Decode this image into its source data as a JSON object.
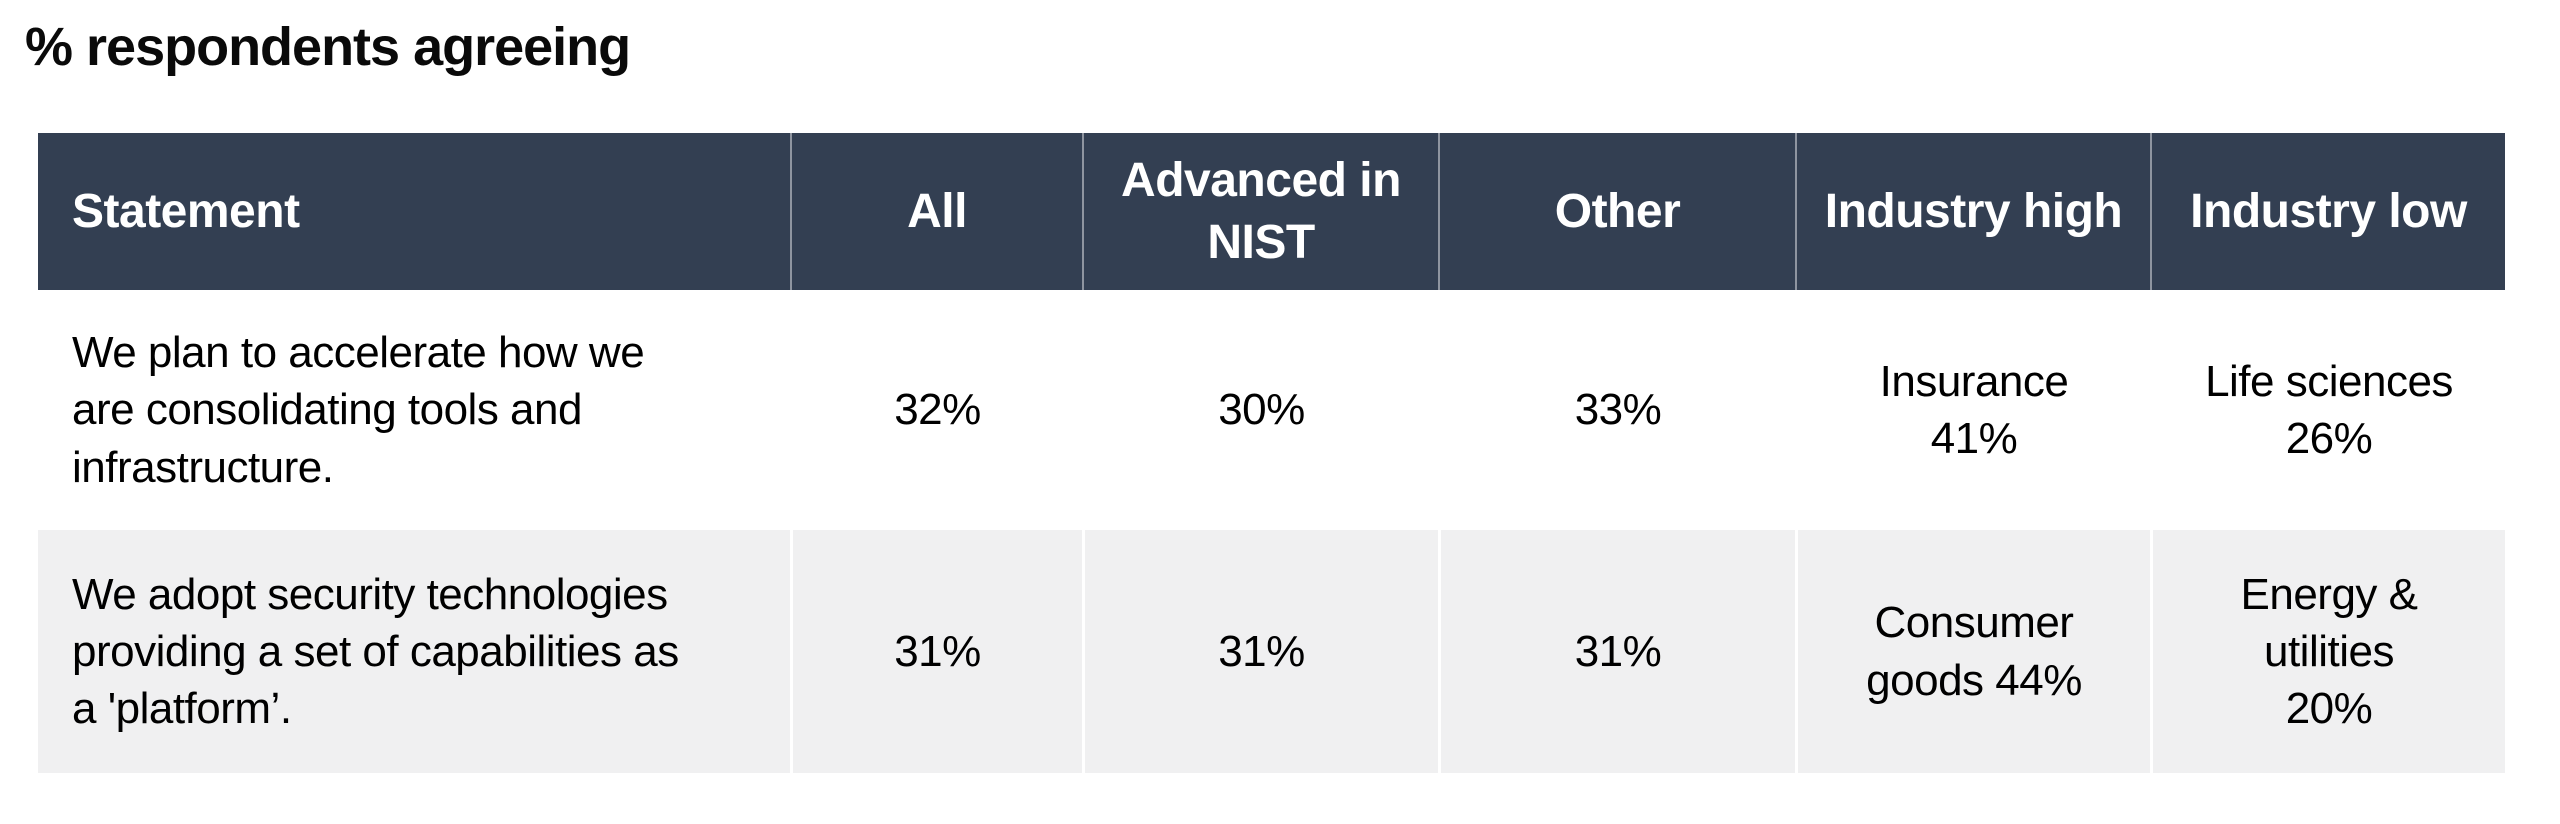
{
  "page_title": "% respondents agreeing",
  "colors": {
    "header_background": "#333f52",
    "header_text": "#ffffff",
    "row_background": "#ffffff",
    "row_alt_background": "#f0f0f1",
    "body_text": "#000000",
    "divider": "#ffffff"
  },
  "chart_data": {
    "type": "table",
    "title": "% respondents agreeing",
    "columns": [
      "Statement",
      "All",
      "Advanced in\nNIST",
      "Other",
      "Industry high",
      "Industry low"
    ],
    "rows": [
      [
        "We plan to accelerate how we\nare consolidating tools and\ninfrastructure.",
        "32%",
        "30%",
        "33%",
        "Insurance\n41%",
        "Life sciences\n26%"
      ],
      [
        "We adopt security technologies\nproviding a set of capabilities as\na 'platform’.",
        "31%",
        "31%",
        "31%",
        "Consumer\ngoods 44%",
        "Energy &\nutilities\n20%"
      ]
    ],
    "values": {
      "row_1": {
        "all": 32,
        "advanced_in_nist": 30,
        "other": 33,
        "industry_high": "Insurance 41",
        "industry_low": "Life sciences 26"
      },
      "row_2": {
        "all": 31,
        "advanced_in_nist": 31,
        "other": 31,
        "industry_high": "Consumer goods 44",
        "industry_low": "Energy & utilities 20"
      },
      "unit": "%"
    },
    "layout_hints": {
      "header_style": "dark-band",
      "alternating_rows": true,
      "statement_align": "left",
      "data_align": "center"
    }
  }
}
